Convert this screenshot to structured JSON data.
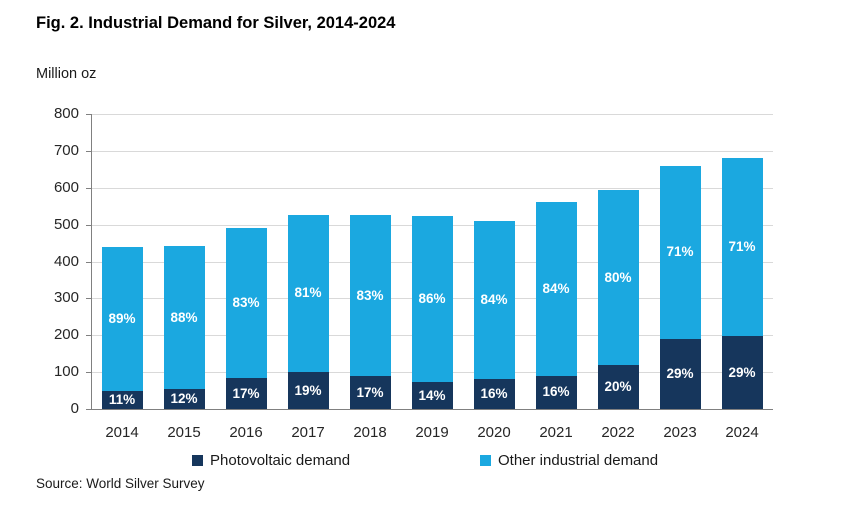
{
  "title": "Fig. 2. Industrial Demand for Silver, 2014-2024",
  "source": "Source: World Silver Survey",
  "colors": {
    "photovoltaic": "#16365c",
    "other_industrial": "#1ba8e0",
    "gridline": "#d9d9d9",
    "axis": "#808080"
  },
  "chart_data": {
    "type": "bar",
    "stacked": true,
    "title": "Fig. 2. Industrial Demand for Silver, 2014-2024",
    "ylabel": "Million oz",
    "xlabel": "",
    "ylim": [
      0,
      800
    ],
    "yticks": [
      0,
      100,
      200,
      300,
      400,
      500,
      600,
      700,
      800
    ],
    "grid": true,
    "legend_position": "bottom",
    "categories": [
      "2014",
      "2015",
      "2016",
      "2017",
      "2018",
      "2019",
      "2020",
      "2021",
      "2022",
      "2023",
      "2024"
    ],
    "totals": [
      440,
      443,
      490,
      527,
      525,
      523,
      510,
      562,
      593,
      658,
      680
    ],
    "series": [
      {
        "name": "Photovoltaic demand",
        "color": "#16365c",
        "percent": [
          11,
          12,
          17,
          19,
          17,
          14,
          16,
          16,
          20,
          29,
          29
        ],
        "labels": [
          "11%",
          "12%",
          "17%",
          "19%",
          "17%",
          "14%",
          "16%",
          "16%",
          "20%",
          "29%",
          "29%"
        ]
      },
      {
        "name": "Other industrial demand",
        "color": "#1ba8e0",
        "percent": [
          89,
          88,
          83,
          81,
          83,
          86,
          84,
          84,
          80,
          71,
          71
        ],
        "labels": [
          "89%",
          "88%",
          "83%",
          "81%",
          "83%",
          "86%",
          "84%",
          "84%",
          "80%",
          "71%",
          "71%"
        ]
      }
    ]
  }
}
